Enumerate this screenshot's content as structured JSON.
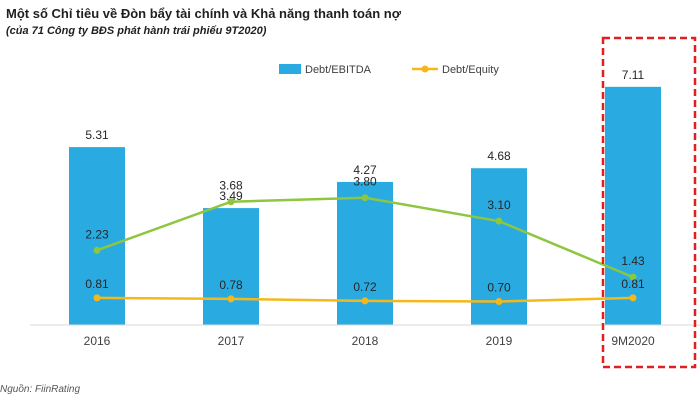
{
  "title": "Một số Chỉ tiêu về Đòn bẩy tài chính và Khả năng thanh toán nợ",
  "subtitle": "(của 71 Công ty BĐS phát hành trái phiếu 9T2020)",
  "source": "Nguồn: FiinRating",
  "colors": {
    "bar": "#29ABE2",
    "green_line": "#8DC63F",
    "yellow_line": "#F4B81C",
    "highlight_box": "#E02020"
  },
  "chart_data": {
    "type": "bar",
    "categories": [
      "2016",
      "2017",
      "2018",
      "2019",
      "9M2020"
    ],
    "ylim": [
      0,
      8
    ],
    "series": [
      {
        "name": "Debt/EBITDA",
        "type": "bar",
        "values": [
          5.31,
          3.49,
          4.27,
          4.68,
          7.11
        ],
        "labels": [
          "5.31",
          "3.49",
          "4.27",
          "4.68",
          "7.11"
        ]
      },
      {
        "name": "Debt/Equity",
        "type": "line",
        "values": [
          0.81,
          0.78,
          0.72,
          0.7,
          0.81
        ],
        "labels": [
          "0.81",
          "0.78",
          "0.72",
          "0.70",
          "0.81"
        ]
      },
      {
        "type": "line",
        "values": [
          2.23,
          3.68,
          3.8,
          3.1,
          1.43
        ],
        "labels": [
          "2.23",
          "3.68",
          "3.80",
          "3.10",
          "1.43"
        ]
      }
    ],
    "legend_position": "top-right",
    "highlighted_category": "9M2020"
  }
}
